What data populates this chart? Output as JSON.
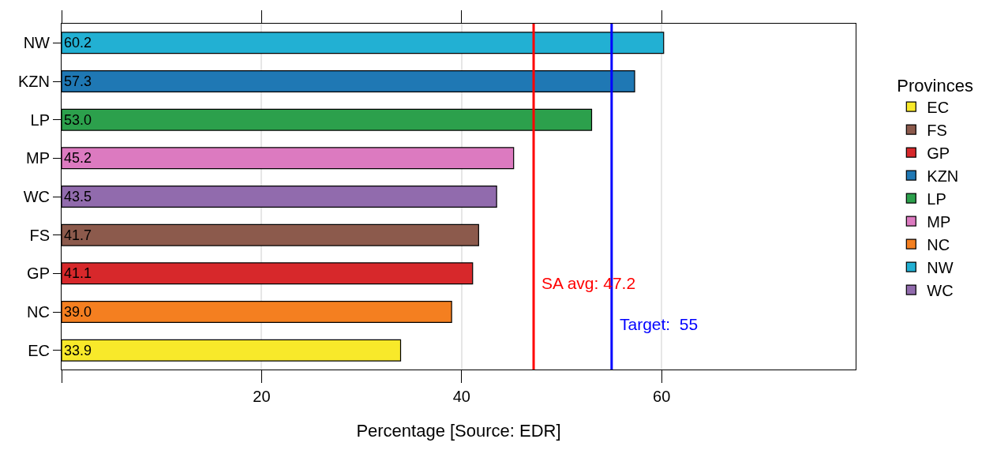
{
  "chart_data": {
    "type": "bar",
    "orientation": "horizontal",
    "xlabel": "Percentage [Source: EDR]",
    "legend_title": "Provinces",
    "categories": [
      "NW",
      "KZN",
      "LP",
      "MP",
      "WC",
      "FS",
      "GP",
      "NC",
      "EC"
    ],
    "series": [
      {
        "name": "EC",
        "color": "#f8e92a",
        "values": [
          null,
          null,
          null,
          null,
          null,
          null,
          null,
          null,
          33.9
        ],
        "value_labels": [
          null,
          null,
          null,
          null,
          null,
          null,
          null,
          null,
          "33.9"
        ]
      },
      {
        "name": "FS",
        "color": "#8c5a4c",
        "values": [
          null,
          null,
          null,
          null,
          null,
          41.7,
          null,
          null,
          null
        ],
        "value_labels": [
          null,
          null,
          null,
          null,
          null,
          "41.7",
          null,
          null,
          null
        ]
      },
      {
        "name": "GP",
        "color": "#d7282b",
        "values": [
          null,
          null,
          null,
          null,
          null,
          null,
          41.1,
          null,
          null
        ],
        "value_labels": [
          null,
          null,
          null,
          null,
          null,
          null,
          "41.1",
          null,
          null
        ]
      },
      {
        "name": "KZN",
        "color": "#1f78b4",
        "values": [
          null,
          57.3,
          null,
          null,
          null,
          null,
          null,
          null,
          null
        ],
        "value_labels": [
          null,
          "57.3",
          null,
          null,
          null,
          null,
          null,
          null,
          null
        ]
      },
      {
        "name": "LP",
        "color": "#2ca04c",
        "values": [
          null,
          null,
          53.0,
          null,
          null,
          null,
          null,
          null,
          null
        ],
        "value_labels": [
          null,
          null,
          "53.0",
          null,
          null,
          null,
          null,
          null,
          null
        ]
      },
      {
        "name": "MP",
        "color": "#dc7ac0",
        "values": [
          null,
          null,
          null,
          45.2,
          null,
          null,
          null,
          null,
          null
        ],
        "value_labels": [
          null,
          null,
          null,
          "45.2",
          null,
          null,
          null,
          null,
          null
        ]
      },
      {
        "name": "NC",
        "color": "#f47f20",
        "values": [
          null,
          null,
          null,
          null,
          null,
          null,
          null,
          39.0,
          null
        ],
        "value_labels": [
          null,
          null,
          null,
          null,
          null,
          null,
          null,
          "39.0",
          null
        ]
      },
      {
        "name": "NW",
        "color": "#22b0d3",
        "values": [
          60.2,
          null,
          null,
          null,
          null,
          null,
          null,
          null,
          null
        ],
        "value_labels": [
          "60.2",
          null,
          null,
          null,
          null,
          null,
          null,
          null,
          null
        ]
      },
      {
        "name": "WC",
        "color": "#916bad",
        "values": [
          null,
          null,
          null,
          null,
          43.5,
          null,
          null,
          null,
          null
        ],
        "value_labels": [
          null,
          null,
          null,
          null,
          "43.5",
          null,
          null,
          null,
          null
        ]
      }
    ],
    "xlim": [
      0,
      79.4
    ],
    "xticks": [
      {
        "value": 0,
        "label": null
      },
      20,
      40,
      60
    ],
    "ref_lines": [
      {
        "axis": "x",
        "value": 47.2,
        "label": "SA avg: 47.2",
        "color": "#ff0000"
      },
      {
        "axis": "x",
        "value": 55,
        "label": "Target:  55",
        "color": "#0000ff"
      }
    ],
    "grid": "x",
    "legend": "right"
  }
}
